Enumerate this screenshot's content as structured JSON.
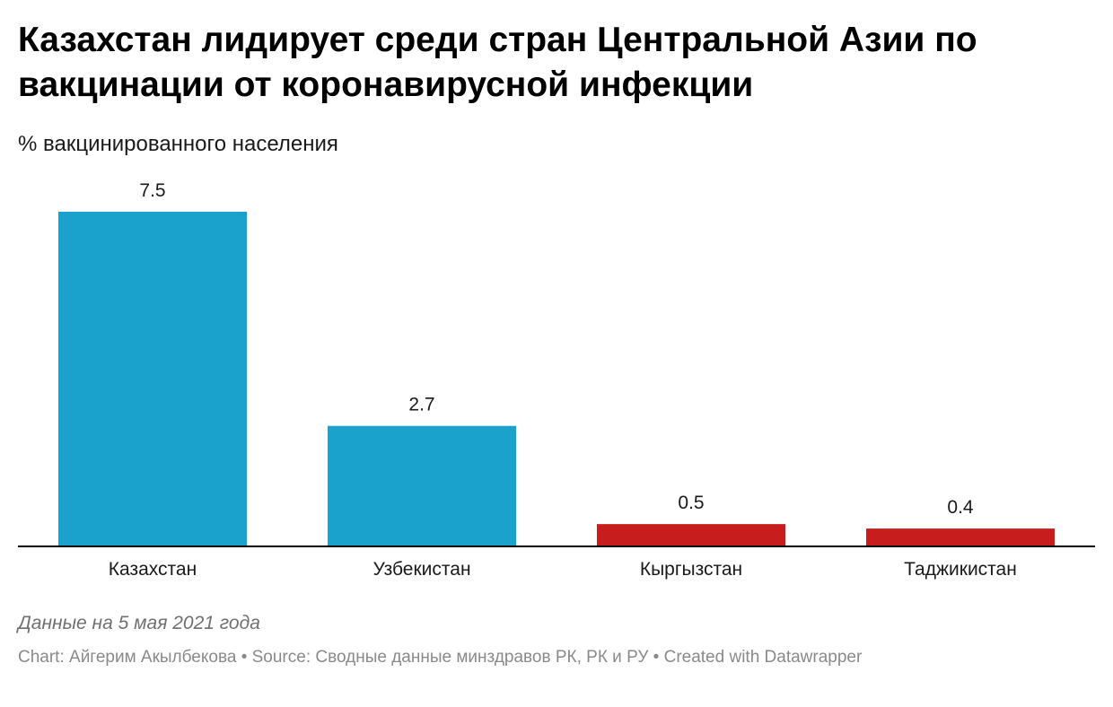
{
  "header": {
    "title": "Казахстан лидирует среди стран Центральной Азии по вакцинации от коронавирусной инфекции",
    "subtitle": "% вакцинированного населения"
  },
  "chart_data": {
    "type": "bar",
    "categories": [
      "Казахстан",
      "Узбекистан",
      "Кыргызстан",
      "Таджикистан"
    ],
    "values": [
      7.5,
      2.7,
      0.5,
      0.4
    ],
    "value_labels": [
      "7.5",
      "2.7",
      "0.5",
      "0.4"
    ],
    "colors": [
      "#1aa1cc",
      "#1aa1cc",
      "#c71e1d",
      "#c71e1d"
    ],
    "ylim": [
      0,
      7.5
    ],
    "grid": false,
    "baseline_color": "#000000"
  },
  "footer": {
    "note": "Данные на 5 мая 2021 года",
    "credits": "Chart: Айгерим Акылбекова • Source: Сводные данные минздравов РК, РК и РУ • Created with Datawrapper"
  }
}
